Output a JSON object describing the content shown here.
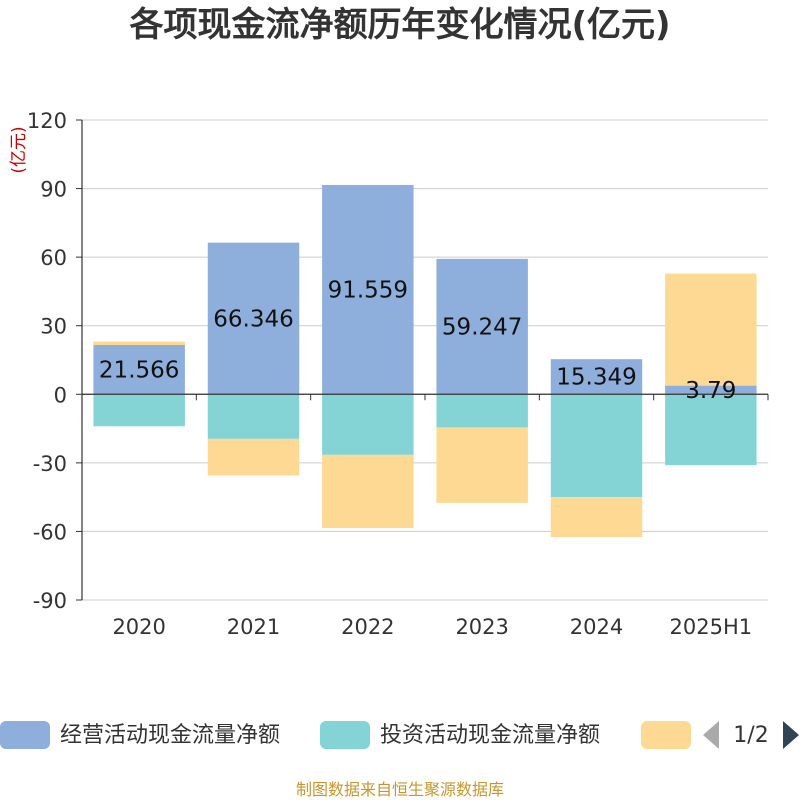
{
  "chart_data": {
    "type": "bar",
    "stacked": true,
    "title": "各项现金流净额历年变化情况(亿元)",
    "unit_label": "(亿元)",
    "categories": [
      "2020",
      "2021",
      "2022",
      "2023",
      "2024",
      "2025H1"
    ],
    "ylim": [
      -90,
      120
    ],
    "yticks": [
      "120",
      "90",
      "60",
      "30",
      "0",
      "-30",
      "-60",
      "-90"
    ],
    "grid": true,
    "legend_position": "bottom",
    "series": [
      {
        "name": "经营活动现金流量净额",
        "color": "#8eaedb",
        "values": [
          21.566,
          66.346,
          91.559,
          59.247,
          15.349,
          3.79
        ],
        "labels": [
          "21.566",
          "66.346",
          "91.559",
          "59.247",
          "15.349",
          "3.79"
        ]
      },
      {
        "name": "投资活动现金流量净额",
        "color": "#84d4d6",
        "values": [
          -14,
          -19.5,
          -26.5,
          -14.5,
          -45,
          -31
        ]
      },
      {
        "name": "",
        "color": "#fed994",
        "values": [
          1.5,
          -16,
          -32,
          -33,
          -17.5,
          49
        ]
      }
    ],
    "legend_page": "1/2",
    "source": "制图数据来自恒生聚源数据库"
  }
}
